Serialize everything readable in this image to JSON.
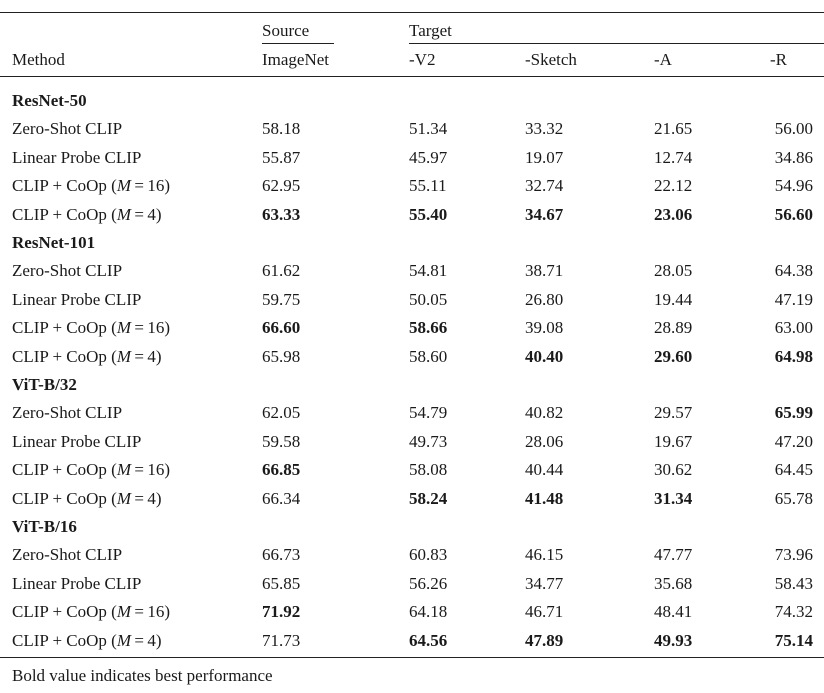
{
  "headers": {
    "method": "Method",
    "source_group": "Source",
    "target_group": "Target",
    "columns": [
      "ImageNet",
      "-V2",
      "-Sketch",
      "-A",
      "-R"
    ]
  },
  "groups": [
    {
      "name": "ResNet-50",
      "rows": [
        {
          "method": "Zero-Shot CLIP",
          "values": [
            "58.18",
            "51.34",
            "33.32",
            "21.65",
            "56.00"
          ],
          "bold": [
            false,
            false,
            false,
            false,
            false
          ]
        },
        {
          "method": "Linear Probe CLIP",
          "values": [
            "55.87",
            "45.97",
            "19.07",
            "12.74",
            "34.86"
          ],
          "bold": [
            false,
            false,
            false,
            false,
            false
          ]
        },
        {
          "method": "CLIP + CoOp (M=16)",
          "values": [
            "62.95",
            "55.11",
            "32.74",
            "22.12",
            "54.96"
          ],
          "bold": [
            false,
            false,
            false,
            false,
            false
          ]
        },
        {
          "method": "CLIP + CoOp (M=4)",
          "values": [
            "63.33",
            "55.40",
            "34.67",
            "23.06",
            "56.60"
          ],
          "bold": [
            true,
            true,
            true,
            true,
            true
          ]
        }
      ]
    },
    {
      "name": "ResNet-101",
      "rows": [
        {
          "method": "Zero-Shot CLIP",
          "values": [
            "61.62",
            "54.81",
            "38.71",
            "28.05",
            "64.38"
          ],
          "bold": [
            false,
            false,
            false,
            false,
            false
          ]
        },
        {
          "method": "Linear Probe CLIP",
          "values": [
            "59.75",
            "50.05",
            "26.80",
            "19.44",
            "47.19"
          ],
          "bold": [
            false,
            false,
            false,
            false,
            false
          ]
        },
        {
          "method": "CLIP + CoOp (M=16)",
          "values": [
            "66.60",
            "58.66",
            "39.08",
            "28.89",
            "63.00"
          ],
          "bold": [
            true,
            true,
            false,
            false,
            false
          ]
        },
        {
          "method": "CLIP + CoOp (M=4)",
          "values": [
            "65.98",
            "58.60",
            "40.40",
            "29.60",
            "64.98"
          ],
          "bold": [
            false,
            false,
            true,
            true,
            true
          ]
        }
      ]
    },
    {
      "name": "ViT-B/32",
      "rows": [
        {
          "method": "Zero-Shot CLIP",
          "values": [
            "62.05",
            "54.79",
            "40.82",
            "29.57",
            "65.99"
          ],
          "bold": [
            false,
            false,
            false,
            false,
            true
          ]
        },
        {
          "method": "Linear Probe CLIP",
          "values": [
            "59.58",
            "49.73",
            "28.06",
            "19.67",
            "47.20"
          ],
          "bold": [
            false,
            false,
            false,
            false,
            false
          ]
        },
        {
          "method": "CLIP + CoOp (M=16)",
          "values": [
            "66.85",
            "58.08",
            "40.44",
            "30.62",
            "64.45"
          ],
          "bold": [
            true,
            false,
            false,
            false,
            false
          ]
        },
        {
          "method": "CLIP + CoOp (M=4)",
          "values": [
            "66.34",
            "58.24",
            "41.48",
            "31.34",
            "65.78"
          ],
          "bold": [
            false,
            true,
            true,
            true,
            false
          ]
        }
      ]
    },
    {
      "name": "ViT-B/16",
      "rows": [
        {
          "method": "Zero-Shot CLIP",
          "values": [
            "66.73",
            "60.83",
            "46.15",
            "47.77",
            "73.96"
          ],
          "bold": [
            false,
            false,
            false,
            false,
            false
          ]
        },
        {
          "method": "Linear Probe CLIP",
          "values": [
            "65.85",
            "56.26",
            "34.77",
            "35.68",
            "58.43"
          ],
          "bold": [
            false,
            false,
            false,
            false,
            false
          ]
        },
        {
          "method": "CLIP + CoOp (M=16)",
          "values": [
            "71.92",
            "64.18",
            "46.71",
            "48.41",
            "74.32"
          ],
          "bold": [
            true,
            false,
            false,
            false,
            false
          ]
        },
        {
          "method": "CLIP + CoOp (M=4)",
          "values": [
            "71.73",
            "64.56",
            "47.89",
            "49.93",
            "75.14"
          ],
          "bold": [
            false,
            true,
            true,
            true,
            true
          ]
        }
      ]
    }
  ],
  "footnote": "Bold value indicates best performance"
}
